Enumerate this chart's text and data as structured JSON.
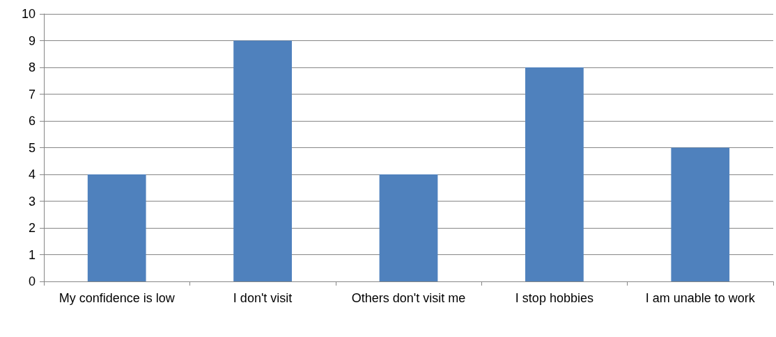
{
  "chart_data": {
    "type": "bar",
    "categories": [
      "My confidence is low",
      "I don't visit",
      "Others don't visit me",
      "I stop hobbies",
      "I am unable to work"
    ],
    "values": [
      4,
      9,
      4,
      8,
      5
    ],
    "color": "#4f81bd",
    "ylim": [
      0,
      10
    ],
    "yticks": [
      0,
      1,
      2,
      3,
      4,
      5,
      6,
      7,
      8,
      9,
      10
    ],
    "grid": "y"
  }
}
